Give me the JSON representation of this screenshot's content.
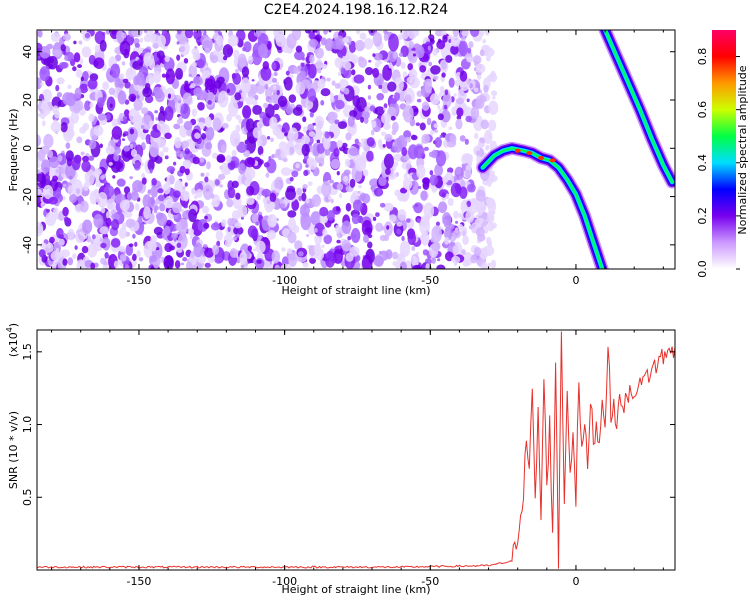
{
  "title": "C2E4.2024.198.16.12.R24",
  "chart_data": [
    {
      "type": "heatmap",
      "title": "C2E4.2024.198.16.12.R24",
      "xlabel": "Height of straight line (km)",
      "ylabel": "Frequency (Hz)",
      "xlim": [
        -185,
        34
      ],
      "ylim": [
        -50,
        49
      ],
      "x_ticks": [
        -150,
        -100,
        -50,
        0
      ],
      "y_ticks": [
        -40,
        -20,
        0,
        20,
        40
      ],
      "noise_region_x": [
        -185,
        -28
      ],
      "ridges": [
        {
          "x": [
            -32,
            -28,
            -25,
            -22,
            -18,
            -15,
            -12,
            -9,
            -6,
            -3,
            0,
            3,
            6,
            9
          ],
          "y": [
            -8,
            -3,
            -1,
            0,
            -1,
            -2,
            -4,
            -5,
            -8,
            -13,
            -19,
            -28,
            -39,
            -50
          ]
        },
        {
          "x": [
            10,
            14,
            18,
            22,
            26,
            30,
            33
          ],
          "y": [
            49,
            38,
            27,
            16,
            4,
            -7,
            -14
          ]
        }
      ],
      "colorbar": {
        "label": "Normalized spectral amplitude",
        "range": [
          0.0,
          0.9
        ],
        "ticks": [
          "0.0",
          "0.2",
          "0.4",
          "0.6",
          "0.8"
        ],
        "tick_values": [
          0.0,
          0.2,
          0.4,
          0.6,
          0.8
        ],
        "colors": [
          "#ffffff",
          "#cc99ff",
          "#7700ee",
          "#0000ff",
          "#00ddff",
          "#00ff44",
          "#ccff00",
          "#ff9900",
          "#ff0000",
          "#ff0066"
        ]
      }
    },
    {
      "type": "line",
      "xlabel": "Height of straight line (km)",
      "ylabel": "SNR (10 * v/v)",
      "multiplier": "(x10",
      "multiplier_exp": "4",
      "multiplier_close": ")",
      "xlim": [
        -185,
        34
      ],
      "ylim": [
        0,
        1.65
      ],
      "x_ticks": [
        -150,
        -100,
        -50,
        0
      ],
      "y_ticks": [
        "0.5",
        "1.0",
        "1.5"
      ],
      "y_tick_values": [
        0.5,
        1.0,
        1.5
      ],
      "color": "#e8302a",
      "series": [
        {
          "x": [
            -185,
            -150,
            -100,
            -60,
            -30,
            -22,
            -20,
            -18,
            -17,
            -16,
            -15,
            -14,
            -13,
            -12,
            -11,
            -10,
            -9,
            -8,
            -7,
            -6,
            -5,
            -4,
            -3,
            -2,
            -1,
            0,
            1,
            2,
            3,
            4,
            5,
            6,
            7,
            8,
            9,
            10,
            11,
            12,
            13,
            14,
            15,
            16,
            17,
            18,
            19,
            20,
            21,
            22,
            23,
            24,
            25,
            26,
            27,
            28,
            29,
            30,
            31,
            32,
            33,
            34
          ],
          "y": [
            0.02,
            0.02,
            0.02,
            0.02,
            0.03,
            0.06,
            0.25,
            0.55,
            0.9,
            0.7,
            1.2,
            0.45,
            1.1,
            0.35,
            1.3,
            0.6,
            1.0,
            0.25,
            1.4,
            0.05,
            1.65,
            0.5,
            1.2,
            0.7,
            0.95,
            0.5,
            1.3,
            0.8,
            1.0,
            0.7,
            1.2,
            0.9,
            1.0,
            0.85,
            1.2,
            1.0,
            1.58,
            1.05,
            1.1,
            1.05,
            1.15,
            1.1,
            1.2,
            1.15,
            1.25,
            1.2,
            1.3,
            1.25,
            1.3,
            1.32,
            1.35,
            1.38,
            1.4,
            1.42,
            1.45,
            1.47,
            1.5,
            1.48,
            1.52,
            1.53
          ]
        }
      ]
    }
  ]
}
